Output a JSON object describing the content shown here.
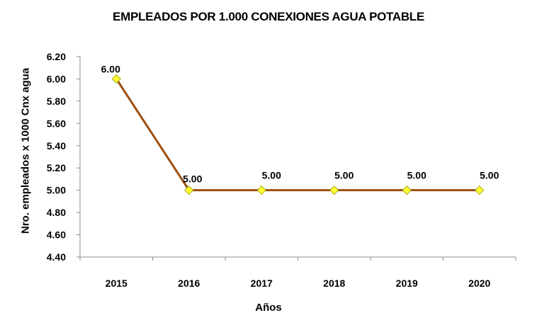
{
  "chart_data": {
    "type": "line",
    "title": "EMPLEADOS POR 1.000 CONEXIONES AGUA POTABLE",
    "xlabel": "Años",
    "ylabel": "Nro. empleados x 1000 Cnx agua",
    "categories": [
      "2015",
      "2016",
      "2017",
      "2018",
      "2019",
      "2020"
    ],
    "series": [
      {
        "values": [
          6.0,
          5.0,
          5.0,
          5.0,
          5.0,
          5.0
        ],
        "data_labels": [
          "6.00",
          "5.00",
          "5.00",
          "5.00",
          "5.00",
          "5.00"
        ],
        "line_color": "#9C4F10",
        "marker_color": "#FFFF33",
        "marker": "diamond"
      }
    ],
    "ylim": [
      4.4,
      6.2
    ],
    "yticks": [
      4.4,
      4.6,
      4.8,
      5.0,
      5.2,
      5.4,
      5.6,
      5.8,
      6.0,
      6.2
    ],
    "ytick_labels": [
      "4.40",
      "4.60",
      "4.80",
      "5.00",
      "5.20",
      "5.40",
      "5.60",
      "5.80",
      "6.00",
      "6.20"
    ],
    "grid": false,
    "legend": "none"
  }
}
